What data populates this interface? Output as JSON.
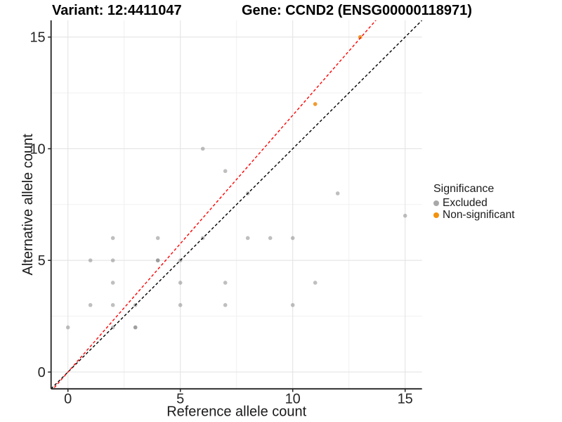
{
  "titles": {
    "left": "Variant: 12:4411047",
    "right": "Gene: CCND2 (ENSG00000118971)"
  },
  "legend": {
    "title": "Significance",
    "items": [
      {
        "label": "Excluded",
        "color": "#a8a8a8"
      },
      {
        "label": "Non-significant",
        "color": "#f2920e"
      }
    ]
  },
  "chart_data": {
    "type": "scatter",
    "title_left": "Variant: 12:4411047",
    "title_right": "Gene: CCND2 (ENSG00000118971)",
    "xlabel": "Reference allele count",
    "ylabel": "Alternative allele count",
    "xlim": [
      -0.75,
      15.75
    ],
    "ylim": [
      -0.75,
      15.75
    ],
    "x_ticks": [
      0,
      5,
      10,
      15
    ],
    "y_ticks": [
      0,
      5,
      10,
      15
    ],
    "x_minor_ticks": [
      2.5,
      7.5,
      12.5
    ],
    "y_minor_ticks": [
      2.5,
      7.5,
      12.5
    ],
    "grid": true,
    "legend_position": "right",
    "series": [
      {
        "name": "Excluded",
        "color": "#808080",
        "point_opacity": 0.5,
        "points": [
          [
            0,
            2,
            1
          ],
          [
            1,
            3,
            1
          ],
          [
            1,
            5,
            1
          ],
          [
            2,
            2,
            1
          ],
          [
            2,
            3,
            1
          ],
          [
            2,
            4,
            1
          ],
          [
            2,
            5,
            1
          ],
          [
            2,
            6,
            1
          ],
          [
            3,
            2,
            2
          ],
          [
            3,
            3,
            1
          ],
          [
            4,
            5,
            2
          ],
          [
            4,
            6,
            1
          ],
          [
            5,
            3,
            1
          ],
          [
            5,
            4,
            1
          ],
          [
            5,
            5,
            1
          ],
          [
            6,
            6,
            1
          ],
          [
            6,
            10,
            1
          ],
          [
            7,
            3,
            1
          ],
          [
            7,
            4,
            1
          ],
          [
            7,
            9,
            1
          ],
          [
            8,
            6,
            1
          ],
          [
            8,
            8,
            1
          ],
          [
            9,
            6,
            1
          ],
          [
            10,
            3,
            1
          ],
          [
            10,
            6,
            1
          ],
          [
            11,
            4,
            1
          ],
          [
            12,
            8,
            1
          ],
          [
            15,
            7,
            1
          ]
        ]
      },
      {
        "name": "Non-significant",
        "color": "#ee8a0c",
        "point_opacity": 0.85,
        "points": [
          [
            11,
            12,
            1
          ],
          [
            13,
            15,
            1
          ]
        ]
      }
    ],
    "lines": [
      {
        "name": "identity-line",
        "slope": 1,
        "intercept": 0,
        "color": "#000000",
        "style": "dashed"
      },
      {
        "name": "expected-ratio-line",
        "slope": 1.15,
        "intercept": 0,
        "color": "#ff0000",
        "style": "dashed"
      }
    ]
  }
}
